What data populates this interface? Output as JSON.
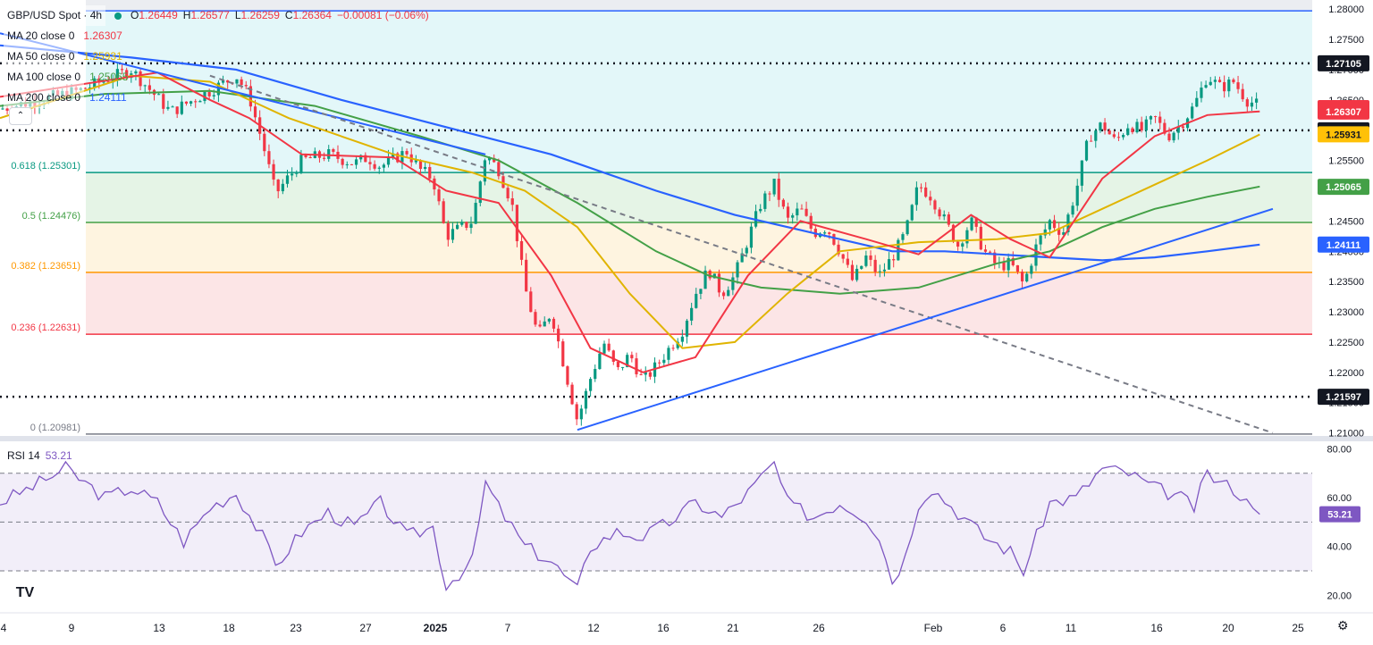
{
  "header": {
    "symbol": "GBP/USD Spot · 4h",
    "o_label": "O",
    "o": "1.26449",
    "h_label": "H",
    "h": "1.26577",
    "l_label": "L",
    "l": "1.26259",
    "c_label": "C",
    "c": "1.26364",
    "change": "−0.00081 (−0.06%)"
  },
  "ma_legend": [
    {
      "label": "MA 20 close 0",
      "value": "1.26307",
      "color": "#f23645"
    },
    {
      "label": "MA 50 close 0",
      "value": "1.25931",
      "color": "#e0b400"
    },
    {
      "label": "MA 100 close 0",
      "value": "1.25065",
      "color": "#43a047"
    },
    {
      "label": "MA 200 close 0",
      "value": "1.24111",
      "color": "#2962ff"
    }
  ],
  "rsi_legend": {
    "label": "RSI 14",
    "value": "53.21"
  },
  "colors": {
    "up": "#089981",
    "down": "#f23645",
    "ma20": "#f23645",
    "ma50": "#e0b400",
    "ma100": "#43a047",
    "ma200": "#2962ff",
    "rsi": "#7e57c2",
    "trendline": "#2962ff",
    "dashed_trend": "#787b86"
  },
  "icons": {
    "collapse": "chevron-up-icon",
    "logo": "tradingview-logo-icon",
    "settings": "gear-icon"
  },
  "logo_text": "TV",
  "settings_glyph": "⚙",
  "collapse_glyph": "⌃",
  "chart_data": {
    "type": "candlestick",
    "price_axis": {
      "ylim": [
        1.2095,
        1.2815
      ],
      "ticks": [
        "1.28000",
        "1.27500",
        "1.27000",
        "1.26500",
        "1.26000",
        "1.25500",
        "1.25000",
        "1.24500",
        "1.24000",
        "1.23500",
        "1.23000",
        "1.22500",
        "1.22000",
        "1.21500",
        "1.21000"
      ]
    },
    "x_axis": {
      "ticks": [
        "4",
        "9",
        "13",
        "18",
        "23",
        "27",
        "2025",
        "7",
        "12",
        "16",
        "21",
        "26",
        "Feb",
        "6",
        "11",
        "16",
        "20",
        "25"
      ]
    },
    "fibonacci_levels": [
      {
        "ratio": "0.786",
        "value": 1.27971,
        "label": "",
        "fill": "#e9ebf0",
        "line": "#2962ff"
      },
      {
        "ratio": "0.618",
        "value": 1.25301,
        "label": "0.618 (1.25301)",
        "fill": "#d9f4f7",
        "line": "#089981"
      },
      {
        "ratio": "0.5",
        "value": 1.24476,
        "label": "0.5 (1.24476)",
        "fill": "#dcf0dd",
        "line": "#43a047"
      },
      {
        "ratio": "0.382",
        "value": 1.23651,
        "label": "0.382 (1.23651)",
        "fill": "#fdf0d5",
        "line": "#ff9800"
      },
      {
        "ratio": "0.236",
        "value": 1.22631,
        "label": "0.236 (1.22631)",
        "fill": "#fbdcdd",
        "line": "#f23645"
      },
      {
        "ratio": "0",
        "value": 1.20981,
        "label": "0 (1.20981)",
        "fill": "",
        "line": "#787b86"
      }
    ],
    "horizontal_levels": [
      {
        "value": 1.27105,
        "label": "1.27105",
        "style": "dotted"
      },
      {
        "value": 1.25997,
        "label": "1.25997",
        "style": "dotted"
      },
      {
        "value": 1.21597,
        "label": "1.21597",
        "style": "dotted"
      }
    ],
    "price_tags": [
      {
        "value": 1.26364,
        "label": "1.26364",
        "bg": "#f23645",
        "fg": "#ffffff"
      },
      {
        "value": 1.26307,
        "label": "1.26307",
        "bg": "#f23645",
        "fg": "#ffffff"
      },
      {
        "value": 1.25931,
        "label": "1.25931",
        "bg": "#ffc107",
        "fg": "#131722"
      },
      {
        "value": 1.25065,
        "label": "1.25065",
        "bg": "#43a047",
        "fg": "#ffffff"
      },
      {
        "value": 1.24111,
        "label": "1.24111",
        "bg": "#2962ff",
        "fg": "#ffffff"
      }
    ],
    "close_path": [
      [
        0,
        1.2635
      ],
      [
        6,
        1.2665
      ],
      [
        10,
        1.27
      ],
      [
        13,
        1.263
      ],
      [
        16,
        1.2665
      ],
      [
        18,
        1.269
      ],
      [
        19,
        1.2655
      ],
      [
        20,
        1.258
      ],
      [
        21,
        1.2495
      ],
      [
        23,
        1.255
      ],
      [
        25,
        1.256
      ],
      [
        27,
        1.2545
      ],
      [
        28,
        1.2555
      ],
      [
        29,
        1.254
      ],
      [
        31,
        1.2565
      ],
      [
        32,
        1.2535
      ],
      [
        33,
        1.252
      ],
      [
        34,
        1.2425
      ],
      [
        36,
        1.245
      ],
      [
        37,
        1.256
      ],
      [
        38,
        1.2535
      ],
      [
        39,
        1.248
      ],
      [
        40,
        1.234
      ],
      [
        41,
        1.226
      ],
      [
        42,
        1.23
      ],
      [
        43,
        1.221
      ],
      [
        44,
        1.212
      ],
      [
        45,
        1.219
      ],
      [
        46,
        1.225
      ],
      [
        47,
        1.22
      ],
      [
        48,
        1.223
      ],
      [
        49,
        1.2185
      ],
      [
        50,
        1.221
      ],
      [
        52,
        1.227
      ],
      [
        53,
        1.233
      ],
      [
        54,
        1.237
      ],
      [
        55,
        1.233
      ],
      [
        56,
        1.236
      ],
      [
        57,
        1.242
      ],
      [
        58,
        1.248
      ],
      [
        59,
        1.251
      ],
      [
        60,
        1.245
      ],
      [
        61,
        1.247
      ],
      [
        62,
        1.243
      ],
      [
        63,
        1.244
      ],
      [
        64,
        1.24
      ],
      [
        65,
        1.235
      ],
      [
        66,
        1.239
      ],
      [
        67,
        1.236
      ],
      [
        68,
        1.239
      ],
      [
        69,
        1.243
      ],
      [
        70,
        1.251
      ],
      [
        71,
        1.249
      ],
      [
        72,
        1.245
      ],
      [
        73,
        1.241
      ],
      [
        74,
        1.245
      ],
      [
        75,
        1.24
      ],
      [
        76,
        1.2375
      ],
      [
        77,
        1.238
      ],
      [
        78,
        1.2345
      ],
      [
        79,
        1.241
      ],
      [
        80,
        1.245
      ],
      [
        81,
        1.243
      ],
      [
        82,
        1.25
      ],
      [
        83,
        1.259
      ],
      [
        84,
        1.261
      ],
      [
        85,
        1.258
      ],
      [
        86,
        1.261
      ],
      [
        87,
        1.26
      ],
      [
        88,
        1.262
      ],
      [
        89,
        1.259
      ],
      [
        90,
        1.261
      ],
      [
        91,
        1.264
      ],
      [
        92,
        1.269
      ],
      [
        93,
        1.267
      ],
      [
        94,
        1.268
      ],
      [
        95,
        1.265
      ],
      [
        96,
        1.264
      ]
    ],
    "ma20_path": [
      [
        0,
        1.2655
      ],
      [
        12,
        1.2695
      ],
      [
        16,
        1.265
      ],
      [
        19,
        1.262
      ],
      [
        23,
        1.256
      ],
      [
        30,
        1.2555
      ],
      [
        34,
        1.25
      ],
      [
        38,
        1.248
      ],
      [
        42,
        1.236
      ],
      [
        45,
        1.224
      ],
      [
        49,
        1.22
      ],
      [
        53,
        1.2225
      ],
      [
        57,
        1.236
      ],
      [
        61,
        1.245
      ],
      [
        66,
        1.242
      ],
      [
        70,
        1.2395
      ],
      [
        74,
        1.246
      ],
      [
        77,
        1.242
      ],
      [
        80,
        1.239
      ],
      [
        84,
        1.252
      ],
      [
        88,
        1.259
      ],
      [
        92,
        1.2625
      ],
      [
        96,
        1.2631
      ]
    ],
    "ma50_path": [
      [
        0,
        1.262
      ],
      [
        10,
        1.269
      ],
      [
        16,
        1.268
      ],
      [
        22,
        1.262
      ],
      [
        30,
        1.256
      ],
      [
        36,
        1.253
      ],
      [
        40,
        1.25
      ],
      [
        44,
        1.244
      ],
      [
        48,
        1.233
      ],
      [
        52,
        1.224
      ],
      [
        56,
        1.225
      ],
      [
        60,
        1.233
      ],
      [
        64,
        1.24
      ],
      [
        70,
        1.2415
      ],
      [
        76,
        1.242
      ],
      [
        80,
        1.243
      ],
      [
        84,
        1.247
      ],
      [
        88,
        1.251
      ],
      [
        92,
        1.255
      ],
      [
        96,
        1.2593
      ]
    ],
    "ma100_path": [
      [
        0,
        1.264
      ],
      [
        8,
        1.266
      ],
      [
        16,
        1.2665
      ],
      [
        24,
        1.264
      ],
      [
        32,
        1.259
      ],
      [
        38,
        1.255
      ],
      [
        44,
        1.248
      ],
      [
        50,
        1.24
      ],
      [
        54,
        1.236
      ],
      [
        58,
        1.234
      ],
      [
        64,
        1.233
      ],
      [
        70,
        1.234
      ],
      [
        76,
        1.238
      ],
      [
        80,
        1.24
      ],
      [
        84,
        1.244
      ],
      [
        88,
        1.247
      ],
      [
        92,
        1.249
      ],
      [
        96,
        1.2507
      ]
    ],
    "ma200_path": [
      [
        0,
        1.274
      ],
      [
        10,
        1.272
      ],
      [
        18,
        1.27
      ],
      [
        26,
        1.265
      ],
      [
        34,
        1.2605
      ],
      [
        42,
        1.256
      ],
      [
        50,
        1.25
      ],
      [
        56,
        1.246
      ],
      [
        62,
        1.243
      ],
      [
        68,
        1.24
      ],
      [
        72,
        1.24
      ],
      [
        76,
        1.2395
      ],
      [
        80,
        1.239
      ],
      [
        84,
        1.2385
      ],
      [
        88,
        1.239
      ],
      [
        92,
        1.24
      ],
      [
        96,
        1.2411
      ]
    ],
    "trendlines": [
      {
        "name": "downtrend-solid",
        "from": [
          0,
          1.276
        ],
        "to": [
          37,
          1.256
        ],
        "style": "solid",
        "color": "#2962ff"
      },
      {
        "name": "downtrend-dashed",
        "from": [
          16,
          1.269
        ],
        "to": [
          97,
          1.21
        ],
        "style": "dashed",
        "color": "#787b86"
      },
      {
        "name": "uptrend",
        "from": [
          44,
          1.2105
        ],
        "to": [
          97,
          1.247
        ],
        "style": "solid",
        "color": "#2962ff"
      }
    ],
    "rsi": {
      "ylim": [
        15,
        82
      ],
      "ticks": [
        "80.00",
        "60.00",
        "40.00",
        "20.00"
      ],
      "overbought": 70,
      "oversold": 30,
      "middle": 50,
      "values": [
        [
          0,
          58
        ],
        [
          3,
          66
        ],
        [
          5,
          72
        ],
        [
          8,
          60
        ],
        [
          10,
          64
        ],
        [
          12,
          58
        ],
        [
          14,
          42
        ],
        [
          16,
          56
        ],
        [
          18,
          62
        ],
        [
          20,
          44
        ],
        [
          21,
          32
        ],
        [
          23,
          46
        ],
        [
          25,
          54
        ],
        [
          27,
          48
        ],
        [
          29,
          58
        ],
        [
          31,
          44
        ],
        [
          33,
          48
        ],
        [
          34,
          24
        ],
        [
          36,
          34
        ],
        [
          37,
          66
        ],
        [
          38,
          56
        ],
        [
          40,
          40
        ],
        [
          42,
          34
        ],
        [
          44,
          22
        ],
        [
          45,
          40
        ],
        [
          47,
          46
        ],
        [
          49,
          44
        ],
        [
          51,
          50
        ],
        [
          53,
          58
        ],
        [
          55,
          52
        ],
        [
          57,
          62
        ],
        [
          59,
          74
        ],
        [
          60,
          58
        ],
        [
          62,
          52
        ],
        [
          64,
          58
        ],
        [
          66,
          52
        ],
        [
          67,
          44
        ],
        [
          68,
          26
        ],
        [
          69,
          36
        ],
        [
          70,
          58
        ],
        [
          71,
          64
        ],
        [
          73,
          54
        ],
        [
          75,
          44
        ],
        [
          77,
          38
        ],
        [
          78,
          30
        ],
        [
          80,
          58
        ],
        [
          82,
          60
        ],
        [
          84,
          72
        ],
        [
          86,
          70
        ],
        [
          88,
          64
        ],
        [
          90,
          60
        ],
        [
          91,
          56
        ],
        [
          92,
          70
        ],
        [
          93,
          66
        ],
        [
          94,
          64
        ],
        [
          95,
          58
        ],
        [
          96,
          53.21
        ]
      ]
    },
    "title": "",
    "xlabel": "",
    "ylabel": ""
  }
}
